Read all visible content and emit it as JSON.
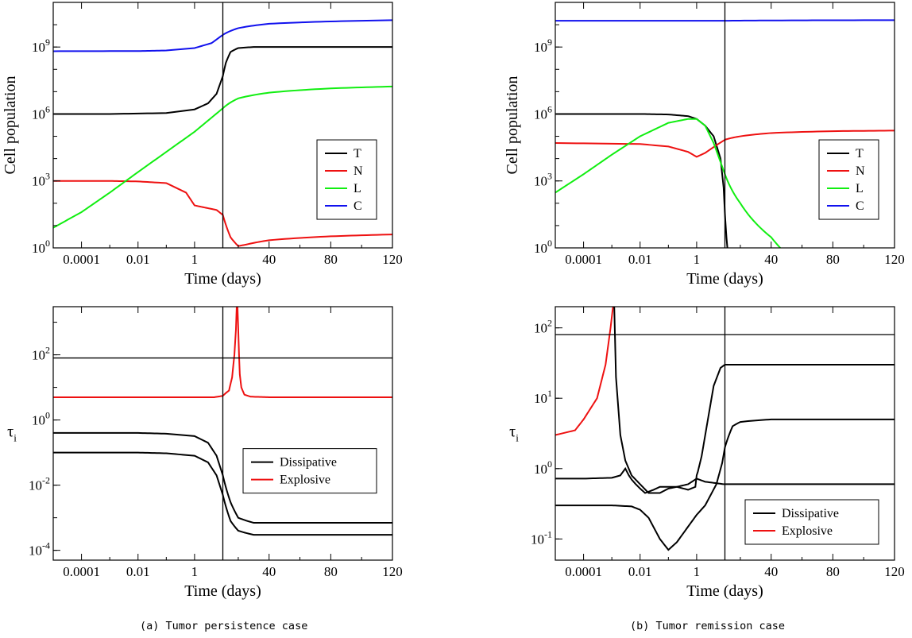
{
  "captions": {
    "left": "(a) Tumor persistence case",
    "right": "(b) Tumor remission case"
  },
  "colors": {
    "T": "#000000",
    "N": "#ee1111",
    "L": "#11ee11",
    "C": "#1111ee",
    "Dissipative": "#000000",
    "Explosive": "#ee1111"
  },
  "chart_data": [
    {
      "type": "line",
      "panel": "a-top",
      "xlabel": "Time (days)",
      "ylabel": "Cell population",
      "x_axis": "piecewise: log scale 1e-5 to 10 days, then linear 10 to 120 days",
      "y_scale": "log",
      "ylim": [
        1,
        100000000000.0
      ],
      "xtick_labels": [
        "0.0001",
        "0.01",
        "1",
        "40",
        "80",
        "120"
      ],
      "ytick_labels": [
        {
          "base": "10",
          "exp": "0"
        },
        {
          "base": "10",
          "exp": "3"
        },
        {
          "base": "10",
          "exp": "6"
        },
        {
          "base": "10",
          "exp": "9"
        }
      ],
      "vline_x": 10,
      "legend": [
        "T",
        "N",
        "L",
        "C"
      ],
      "legend_position": "center-right",
      "series": [
        {
          "name": "T",
          "x": [
            1e-05,
            0.001,
            0.1,
            1,
            3,
            6,
            10,
            12,
            15,
            20,
            30,
            60,
            120
          ],
          "y": [
            1000000.0,
            1000000.0,
            1100000.0,
            1600000.0,
            3000000.0,
            8000000.0,
            50000000.0,
            200000000.0,
            600000000.0,
            900000000.0,
            1000000000.0,
            1000000000.0,
            1000000000.0
          ]
        },
        {
          "name": "N",
          "x": [
            1e-05,
            0.001,
            0.01,
            0.1,
            0.5,
            1,
            3,
            6,
            10,
            15,
            20,
            25,
            40,
            80,
            120
          ],
          "y": [
            1000,
            1000,
            950,
            800,
            300,
            80,
            60,
            50,
            30,
            3,
            1.2,
            1.4,
            2.2,
            3.3,
            4
          ]
        },
        {
          "name": "L",
          "x": [
            1e-05,
            0.0001,
            0.001,
            0.01,
            0.1,
            1,
            10,
            20,
            40,
            80,
            120
          ],
          "y": [
            8,
            40,
            300,
            2500,
            20000,
            160000,
            1800000.0,
            5000000.0,
            9000000.0,
            14000000.0,
            17000000.0
          ]
        },
        {
          "name": "C",
          "x": [
            1e-05,
            0.01,
            0.1,
            1,
            4,
            10,
            20,
            40,
            80,
            120
          ],
          "y": [
            650000000.0,
            660000000.0,
            700000000.0,
            900000000.0,
            1500000000.0,
            3500000000.0,
            7000000000.0,
            11000000000.0,
            14000000000.0,
            16000000000.0
          ]
        }
      ]
    },
    {
      "type": "line",
      "panel": "b-top",
      "xlabel": "Time (days)",
      "ylabel": "Cell population",
      "x_axis": "piecewise: log scale 1e-5 to 10 days, then linear 10 to 120 days",
      "y_scale": "log",
      "ylim": [
        1,
        100000000000.0
      ],
      "xtick_labels": [
        "0.0001",
        "0.01",
        "1",
        "40",
        "80",
        "120"
      ],
      "ytick_labels": [
        {
          "base": "10",
          "exp": "0"
        },
        {
          "base": "10",
          "exp": "3"
        },
        {
          "base": "10",
          "exp": "6"
        },
        {
          "base": "10",
          "exp": "9"
        }
      ],
      "vline_x": 10,
      "legend": [
        "T",
        "N",
        "L",
        "C"
      ],
      "legend_position": "center-right",
      "series": [
        {
          "name": "T",
          "x": [
            1e-05,
            0.01,
            0.1,
            0.5,
            1,
            2,
            4,
            7,
            9,
            11,
            12
          ],
          "y": [
            1000000.0,
            1000000.0,
            950000.0,
            800000.0,
            600000.0,
            300000.0,
            100000.0,
            10000,
            500,
            3,
            0.5
          ]
        },
        {
          "name": "N",
          "x": [
            1e-05,
            0.01,
            0.1,
            0.5,
            1,
            2,
            5,
            10,
            20,
            40,
            80,
            120
          ],
          "y": [
            50000,
            45000,
            35000,
            20000,
            12000,
            18000,
            40000,
            70000,
            100000,
            140000,
            170000,
            180000
          ]
        },
        {
          "name": "L",
          "x": [
            1e-05,
            0.0001,
            0.001,
            0.01,
            0.1,
            0.5,
            1,
            2,
            4,
            10,
            20,
            40,
            50
          ],
          "y": [
            300,
            2000,
            15000,
            100000,
            400000,
            600000.0,
            600000.0,
            300000.0,
            50000,
            2000,
            100,
            3,
            0.5
          ]
        },
        {
          "name": "C",
          "x": [
            1e-05,
            1,
            10,
            40,
            120
          ],
          "y": [
            15000000000.0,
            15000000000.0,
            15000000000.0,
            15500000000.0,
            16000000000.0
          ]
        }
      ]
    },
    {
      "type": "line",
      "panel": "a-bottom",
      "xlabel": "Time (days)",
      "ylabel": "τ_i",
      "x_axis": "piecewise: log scale 1e-5 to 10 days, then linear 10 to 120 days",
      "y_scale": "log",
      "ylim": [
        5e-05,
        3000
      ],
      "xtick_labels": [
        "0.0001",
        "0.01",
        "1",
        "40",
        "80",
        "120"
      ],
      "ytick_labels": [
        {
          "base": "10",
          "exp": "-4"
        },
        {
          "base": "10",
          "exp": "-2"
        },
        {
          "base": "10",
          "exp": "0"
        },
        {
          "base": "10",
          "exp": "2"
        }
      ],
      "vline_x": 10,
      "hline_y": 80,
      "legend": [
        "Dissipative",
        "Explosive"
      ],
      "legend_position": "center-right",
      "series": [
        {
          "name": "Dissipative",
          "x": [
            1e-05,
            0.01,
            0.1,
            1,
            3,
            6,
            10,
            15,
            20,
            30,
            60,
            120
          ],
          "y": [
            0.4,
            0.4,
            0.38,
            0.32,
            0.2,
            0.08,
            0.02,
            0.003,
            0.001,
            0.0007,
            0.0007,
            0.0007
          ]
        },
        {
          "name": "Dissipative",
          "x": [
            1e-05,
            0.01,
            0.1,
            1,
            3,
            6,
            10,
            15,
            20,
            30,
            60,
            120
          ],
          "y": [
            0.1,
            0.1,
            0.095,
            0.08,
            0.05,
            0.02,
            0.005,
            0.0008,
            0.0004,
            0.0003,
            0.0003,
            0.0003
          ]
        },
        {
          "name": "Explosive",
          "x": [
            1e-05,
            1,
            5,
            10,
            14,
            16,
            17.5,
            18.5,
            19,
            19.5,
            20,
            20.5,
            21,
            22,
            24,
            28,
            40,
            120
          ],
          "y": [
            5,
            5,
            5,
            5.5,
            8,
            20,
            100,
            600,
            3000,
            3000,
            600,
            100,
            25,
            10,
            6,
            5.2,
            5,
            5
          ]
        }
      ]
    },
    {
      "type": "line",
      "panel": "b-bottom",
      "xlabel": "Time (days)",
      "ylabel": "τ_i",
      "x_axis": "piecewise: log scale 1e-5 to 10 days, then linear 10 to 120 days",
      "y_scale": "log",
      "ylim": [
        0.05,
        200
      ],
      "xtick_labels": [
        "0.0001",
        "0.01",
        "1",
        "40",
        "80",
        "120"
      ],
      "ytick_labels": [
        {
          "base": "10",
          "exp": "-1"
        },
        {
          "base": "10",
          "exp": "0"
        },
        {
          "base": "10",
          "exp": "1"
        },
        {
          "base": "10",
          "exp": "2"
        }
      ],
      "vline_x": 10,
      "hline_y": 80,
      "legend": [
        "Dissipative",
        "Explosive"
      ],
      "legend_position": "bottom-right",
      "series": [
        {
          "name": "Explosive",
          "x": [
            1e-05,
            5e-05,
            0.0001,
            0.0003,
            0.0006,
            0.0009,
            0.0011,
            0.0012
          ],
          "y": [
            3,
            3.5,
            5,
            10,
            30,
            100,
            200,
            250
          ]
        },
        {
          "name": "Dissipative",
          "x": [
            0.0012,
            0.0014,
            0.002,
            0.003,
            0.005,
            0.01,
            0.02,
            0.05,
            0.1,
            0.2,
            0.5,
            0.9,
            1,
            1.1,
            1.5,
            2.5,
            4,
            7,
            10,
            20,
            40,
            120
          ],
          "y": [
            250,
            20,
            3,
            1.3,
            0.8,
            0.6,
            0.45,
            0.45,
            0.52,
            0.55,
            0.5,
            0.55,
            0.8,
            0.9,
            1.5,
            5,
            15,
            27,
            30,
            30,
            30,
            30
          ]
        },
        {
          "name": "Dissipative",
          "x": [
            1e-05,
            0.0001,
            0.001,
            0.002,
            0.003,
            0.004,
            0.005,
            0.007,
            0.01,
            0.015,
            0.03,
            0.05,
            0.1,
            0.2,
            0.5,
            1,
            2,
            5,
            9,
            10,
            40,
            120
          ],
          "y": [
            0.72,
            0.72,
            0.74,
            0.8,
            1,
            0.8,
            0.7,
            0.6,
            0.52,
            0.45,
            0.5,
            0.55,
            0.55,
            0.55,
            0.6,
            0.72,
            0.65,
            0.62,
            0.6,
            0.6,
            0.6,
            0.6
          ]
        },
        {
          "name": "Dissipative",
          "x": [
            1e-05,
            0.001,
            0.005,
            0.01,
            0.02,
            0.05,
            0.1,
            0.2,
            0.5,
            1,
            2,
            5,
            8,
            10,
            15,
            20,
            40,
            120
          ],
          "y": [
            0.3,
            0.3,
            0.29,
            0.26,
            0.2,
            0.1,
            0.07,
            0.09,
            0.15,
            0.22,
            0.3,
            0.6,
            1.2,
            2,
            4,
            4.6,
            5,
            5
          ]
        }
      ]
    }
  ]
}
